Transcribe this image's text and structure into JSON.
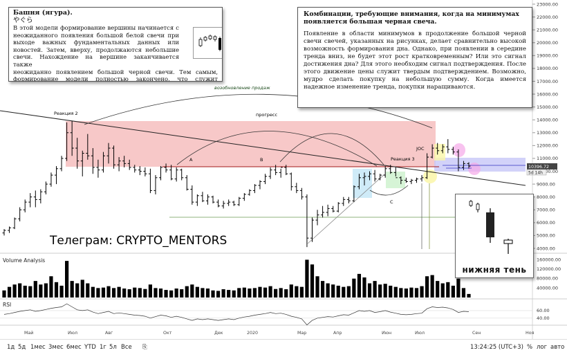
{
  "note_tower": {
    "title": "Башня (ягура).",
    "subtitle": "やぐら",
    "body_1": "В этой модели формирование вершины начинается с неожиданного появления большой белой свечи при выходе важных фундаментальных данных или новостей. Затем, вверху, продолжаются небольшие свечи. Нахождение на вершине заканчивается также",
    "body_2": "неожиданно появлением большой черной свечи. Тем самым, формирование модели полностью закончено, что служит подтверждением"
  },
  "note_combos": {
    "title": "Комбинации, требующие внимания, когда на минимумах появляется большая черная свеча.",
    "body": "Появление в области минимумов в продолжение большой черной свечи свечей, указанных на рисунках, делает сравнительно высокой возможность формирования дна. Однако, при появлении в середине тренда вниз, не будет этот рост кратковременным? Или это сигнал достижения дна? Для этого необходим сигнал подтверждения. После этого движение цены служит твердым подтверждением. Возможно, мудро сделать покупку на небольшую сумму. Когда имеется надежное изменение тренда, покупки наращиваются."
  },
  "note_shadow": {
    "caption": "нижняя тень"
  },
  "telegram": "Телеграм: CRYPTO_MENTORS",
  "annotations": {
    "reaction2": "Реакция 2",
    "reaction3": "Реакция 3",
    "progress": "прогресс",
    "resumption": "возобновление продаж",
    "a": "A",
    "b": "B",
    "c": "C",
    "joc": "JOC"
  },
  "panels": {
    "volume": "Volume Analysis",
    "rsi": "RSI"
  },
  "price_badge": {
    "price": "10396.72",
    "time": "5d 14h"
  },
  "toolbar": {
    "timeframes": [
      "1д",
      "5д",
      "1мес",
      "3мес",
      "6мес",
      "YTD",
      "1г",
      "5л",
      "Все"
    ],
    "clock": "13:24:25 (UTC+3)",
    "percent": "%",
    "log": "лог",
    "auto": "авто"
  },
  "colors": {
    "candle": "#000000",
    "resistance_zone": "#f4b6b6",
    "support_zone": "#c7c7f7",
    "highlight_green": "#c8f0c8",
    "highlight_blue": "#bfe4f5",
    "highlight_yellow": "#faf6a8",
    "highlight_pink": "#f5a8e8",
    "ma_line": "#a01818",
    "rsi_line": "#333333"
  },
  "chart_data": {
    "type": "candlestick",
    "instrument": "",
    "x_ticks": [
      "Май",
      "Июл",
      "Авг",
      "Окт",
      "Дек",
      "2020",
      "Мар",
      "Апр",
      "Июн",
      "Июл",
      "Сен",
      "Ноя"
    ],
    "price_ticks": [
      4000,
      5000,
      6000,
      7000,
      8000,
      9000,
      10000,
      11000,
      12000,
      13000,
      14000,
      15000,
      16000,
      17000,
      18000,
      19000,
      20000,
      21000,
      22000,
      23000
    ],
    "price_tick_labels": [
      "4000.00",
      "5000.00",
      "6000.00",
      "7000.00",
      "8000.00",
      "9000.00",
      "10000.00",
      "11000.00",
      "12000.00",
      "13000.00",
      "14000.00",
      "15000.00",
      "16000.00",
      "17000.00",
      "18000.00",
      "19000.00",
      "20000.00",
      "21000.00",
      "22000.00",
      "23000.00"
    ],
    "ylim": [
      3500,
      23500
    ],
    "volume_ticks": [
      40000,
      80000,
      120000,
      160000
    ],
    "volume_tick_labels": [
      "40000.00",
      "80000.00",
      "120000.00",
      "160000.00"
    ],
    "rsi_ticks": [
      40,
      60
    ],
    "rsi_tick_labels": [
      "40.00",
      "60.00"
    ],
    "candles": [
      [
        5200,
        5500,
        5000,
        5400
      ],
      [
        5400,
        5700,
        5200,
        5600
      ],
      [
        5600,
        6400,
        5500,
        6300
      ],
      [
        6300,
        7200,
        6100,
        7000
      ],
      [
        7000,
        7800,
        6800,
        7600
      ],
      [
        7600,
        8300,
        7200,
        8000
      ],
      [
        8000,
        8500,
        7200,
        7800
      ],
      [
        7800,
        8600,
        7500,
        8400
      ],
      [
        8400,
        9200,
        8200,
        9000
      ],
      [
        9000,
        9900,
        8800,
        9700
      ],
      [
        9700,
        10400,
        9000,
        10200
      ],
      [
        10200,
        11200,
        10000,
        11000
      ],
      [
        11000,
        13800,
        10800,
        13000
      ],
      [
        13000,
        13900,
        11200,
        11800
      ],
      [
        11800,
        12600,
        10200,
        10800
      ],
      [
        10800,
        11600,
        9600,
        11400
      ],
      [
        11400,
        12900,
        10900,
        11200
      ],
      [
        11200,
        11800,
        9800,
        10300
      ],
      [
        10300,
        10900,
        9500,
        10100
      ],
      [
        10100,
        11500,
        9900,
        11200
      ],
      [
        11200,
        12200,
        10600,
        11800
      ],
      [
        11800,
        12000,
        10200,
        10500
      ],
      [
        10500,
        11100,
        10000,
        10800
      ],
      [
        10800,
        11200,
        10300,
        10600
      ],
      [
        10600,
        10900,
        10100,
        10300
      ],
      [
        10300,
        10500,
        9900,
        10100
      ],
      [
        10100,
        10400,
        9700,
        10000
      ],
      [
        10000,
        10300,
        9600,
        9800
      ],
      [
        9800,
        10200,
        8300,
        8500
      ],
      [
        8500,
        9700,
        8200,
        9500
      ],
      [
        9500,
        10400,
        9300,
        10300
      ],
      [
        10300,
        10600,
        9900,
        10100
      ],
      [
        10100,
        10500,
        9300,
        9400
      ],
      [
        9400,
        10300,
        9200,
        10100
      ],
      [
        10100,
        10200,
        9300,
        9500
      ],
      [
        9500,
        9700,
        8500,
        8600
      ],
      [
        8600,
        8900,
        7400,
        7600
      ],
      [
        7600,
        8200,
        7300,
        8100
      ],
      [
        8100,
        8400,
        7600,
        7700
      ],
      [
        7700,
        8200,
        7400,
        8000
      ],
      [
        8000,
        8100,
        7500,
        7600
      ],
      [
        7600,
        7800,
        7200,
        7300
      ],
      [
        7300,
        7700,
        7100,
        7500
      ],
      [
        7500,
        7800,
        7300,
        7600
      ],
      [
        7600,
        7700,
        7300,
        7400
      ],
      [
        7400,
        8000,
        7300,
        7900
      ],
      [
        7900,
        8300,
        7700,
        8200
      ],
      [
        8200,
        8600,
        8100,
        8500
      ],
      [
        8500,
        9000,
        8300,
        8900
      ],
      [
        8900,
        9300,
        8600,
        9200
      ],
      [
        9200,
        9800,
        9000,
        9600
      ],
      [
        9600,
        10300,
        9400,
        10100
      ],
      [
        10100,
        10500,
        9700,
        9900
      ],
      [
        9900,
        10200,
        9500,
        10300
      ],
      [
        10300,
        10500,
        9700,
        9800
      ],
      [
        9800,
        9900,
        8500,
        8800
      ],
      [
        8800,
        9100,
        8300,
        8500
      ],
      [
        8500,
        8700,
        7800,
        8000
      ],
      [
        8000,
        8200,
        4100,
        4800
      ],
      [
        4800,
        6400,
        4500,
        6200
      ],
      [
        6200,
        7000,
        5800,
        6600
      ],
      [
        6600,
        7300,
        6400,
        6800
      ],
      [
        6800,
        7400,
        6500,
        7100
      ],
      [
        7100,
        7300,
        6800,
        6900
      ],
      [
        6900,
        7600,
        6800,
        7500
      ],
      [
        7500,
        8000,
        7300,
        7800
      ],
      [
        7800,
        8000,
        7500,
        7700
      ],
      [
        7700,
        8900,
        7600,
        8800
      ],
      [
        8800,
        9800,
        8600,
        9500
      ],
      [
        9500,
        9900,
        8900,
        9600
      ],
      [
        9600,
        10000,
        9300,
        9800
      ],
      [
        9800,
        10100,
        9200,
        9400
      ],
      [
        9400,
        9800,
        9300,
        9700
      ],
      [
        9700,
        10400,
        9500,
        10200
      ],
      [
        10200,
        10500,
        9800,
        9900
      ],
      [
        9900,
        10300,
        9600,
        9500
      ],
      [
        9500,
        9600,
        9000,
        9300
      ],
      [
        9300,
        9500,
        9100,
        9200
      ],
      [
        9200,
        9400,
        9000,
        9300
      ],
      [
        9300,
        9500,
        9100,
        9400
      ],
      [
        9400,
        9700,
        9200,
        9500
      ],
      [
        9500,
        11400,
        9400,
        11100
      ],
      [
        11100,
        12100,
        11000,
        11800
      ],
      [
        11800,
        12200,
        11300,
        11600
      ],
      [
        11600,
        12100,
        11400,
        11900
      ],
      [
        11900,
        12500,
        11400,
        11700
      ],
      [
        11700,
        11900,
        11300,
        11500
      ],
      [
        11500,
        11700,
        10000,
        10300
      ],
      [
        10300,
        10800,
        10100,
        10600
      ],
      [
        10600,
        10700,
        10200,
        10400
      ]
    ],
    "volume": [
      30,
      45,
      55,
      60,
      50,
      48,
      70,
      55,
      60,
      90,
      65,
      50,
      155,
      70,
      60,
      75,
      60,
      45,
      40,
      42,
      48,
      40,
      45,
      38,
      35,
      42,
      40,
      36,
      55,
      40,
      38,
      32,
      30,
      38,
      35,
      48,
      55,
      45,
      40,
      38,
      30,
      28,
      35,
      32,
      30,
      40,
      42,
      38,
      40,
      45,
      42,
      48,
      36,
      40,
      35,
      55,
      48,
      45,
      160,
      140,
      90,
      70,
      60,
      55,
      50,
      45,
      48,
      80,
      100,
      85,
      60,
      70,
      55,
      58,
      50,
      45,
      40,
      38,
      42,
      40,
      48,
      90,
      95,
      70,
      60,
      65,
      50,
      80,
      40,
      15
    ],
    "rsi": [
      50,
      52,
      55,
      58,
      60,
      62,
      58,
      60,
      63,
      66,
      68,
      70,
      78,
      70,
      62,
      60,
      62,
      56,
      52,
      55,
      58,
      52,
      54,
      52,
      50,
      48,
      47,
      45,
      40,
      44,
      48,
      46,
      42,
      45,
      42,
      38,
      34,
      38,
      36,
      38,
      36,
      34,
      36,
      38,
      36,
      40,
      43,
      45,
      48,
      50,
      52,
      55,
      52,
      53,
      50,
      45,
      42,
      38,
      22,
      34,
      40,
      42,
      44,
      43,
      46,
      49,
      48,
      54,
      60,
      58,
      60,
      55,
      57,
      60,
      56,
      53,
      50,
      49,
      50,
      52,
      53,
      65,
      70,
      68,
      69,
      67,
      63,
      55,
      58,
      57
    ],
    "ma": [
      8200,
      10500,
      13200,
      9800
    ],
    "ma_label": ""
  }
}
